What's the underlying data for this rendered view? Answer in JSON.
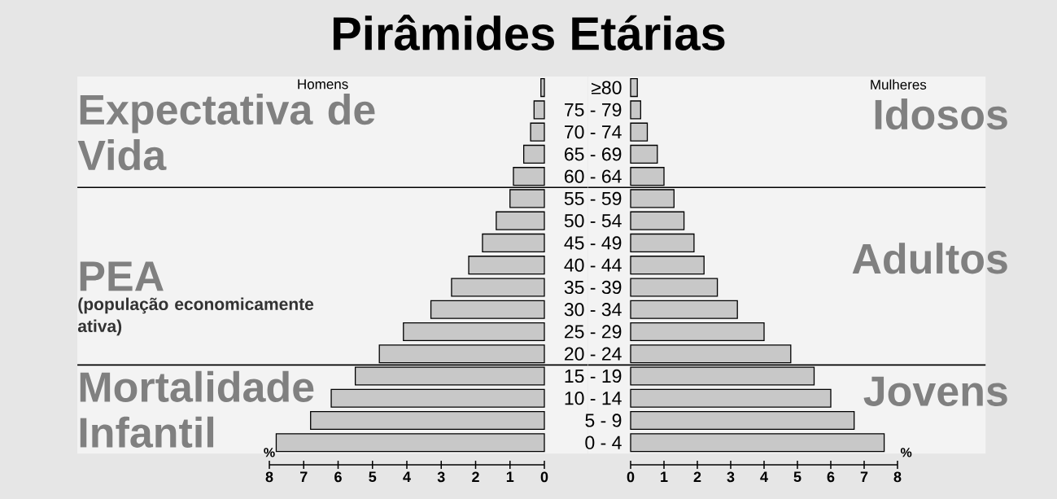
{
  "chart_data": [
    {
      "type": "bar",
      "orientation": "horizontal",
      "title": "Pirâmides Etárias",
      "categories": [
        "≥80",
        "75 - 79",
        "70 - 74",
        "65 - 69",
        "60 - 64",
        "55 - 59",
        "50 - 54",
        "45 - 49",
        "40 - 44",
        "35 - 39",
        "30 - 34",
        "25 - 29",
        "20 - 24",
        "15 - 19",
        "10 - 14",
        "5 - 9",
        "0 - 4"
      ],
      "series": [
        {
          "name": "Homens",
          "color": "#c8c8c8",
          "values": [
            0.1,
            0.3,
            0.4,
            0.6,
            0.9,
            1.0,
            1.4,
            1.8,
            2.2,
            2.7,
            3.3,
            4.1,
            4.8,
            5.5,
            6.2,
            6.8,
            7.8
          ]
        }
      ],
      "xlim": [
        8,
        0
      ],
      "xticks": [
        0,
        1,
        2,
        3,
        4,
        5,
        6,
        7,
        8
      ],
      "xlabel": "%",
      "tick_labels": "x",
      "bands": [
        {
          "axis": "y",
          "from": "≥80",
          "to": "60 - 64",
          "label": "Expectativa de Vida"
        },
        {
          "axis": "y",
          "from": "55 - 59",
          "to": "20 - 24",
          "label": "PEA"
        },
        {
          "axis": "y",
          "from": "15 - 19",
          "to": "0 - 4",
          "label": "Mortalidade Infantil"
        }
      ],
      "annotations": [
        "(população economicamente ativa)"
      ]
    },
    {
      "type": "bar",
      "orientation": "horizontal",
      "categories": [
        "≥80",
        "75 - 79",
        "70 - 74",
        "65 - 69",
        "60 - 64",
        "55 - 59",
        "50 - 54",
        "45 - 49",
        "40 - 44",
        "35 - 39",
        "30 - 34",
        "25 - 29",
        "20 - 24",
        "15 - 19",
        "10 - 14",
        "5 - 9",
        "0 - 4"
      ],
      "series": [
        {
          "name": "Mulheres",
          "color": "#c8c8c8",
          "values": [
            0.2,
            0.3,
            0.5,
            0.8,
            1.0,
            1.3,
            1.6,
            1.9,
            2.2,
            2.6,
            3.2,
            4.0,
            4.8,
            5.5,
            6.0,
            6.7,
            7.6
          ]
        }
      ],
      "xlim": [
        0,
        8
      ],
      "xticks": [
        0,
        1,
        2,
        3,
        4,
        5,
        6,
        7,
        8
      ],
      "xlabel": "%",
      "bands": [
        {
          "axis": "y",
          "from": "≥80",
          "to": "60 - 64",
          "label": "Idosos"
        },
        {
          "axis": "y",
          "from": "55 - 59",
          "to": "20 - 24",
          "label": "Adultos"
        },
        {
          "axis": "y",
          "from": "15 - 19",
          "to": "0 - 4",
          "label": "Jovens"
        }
      ]
    }
  ]
}
